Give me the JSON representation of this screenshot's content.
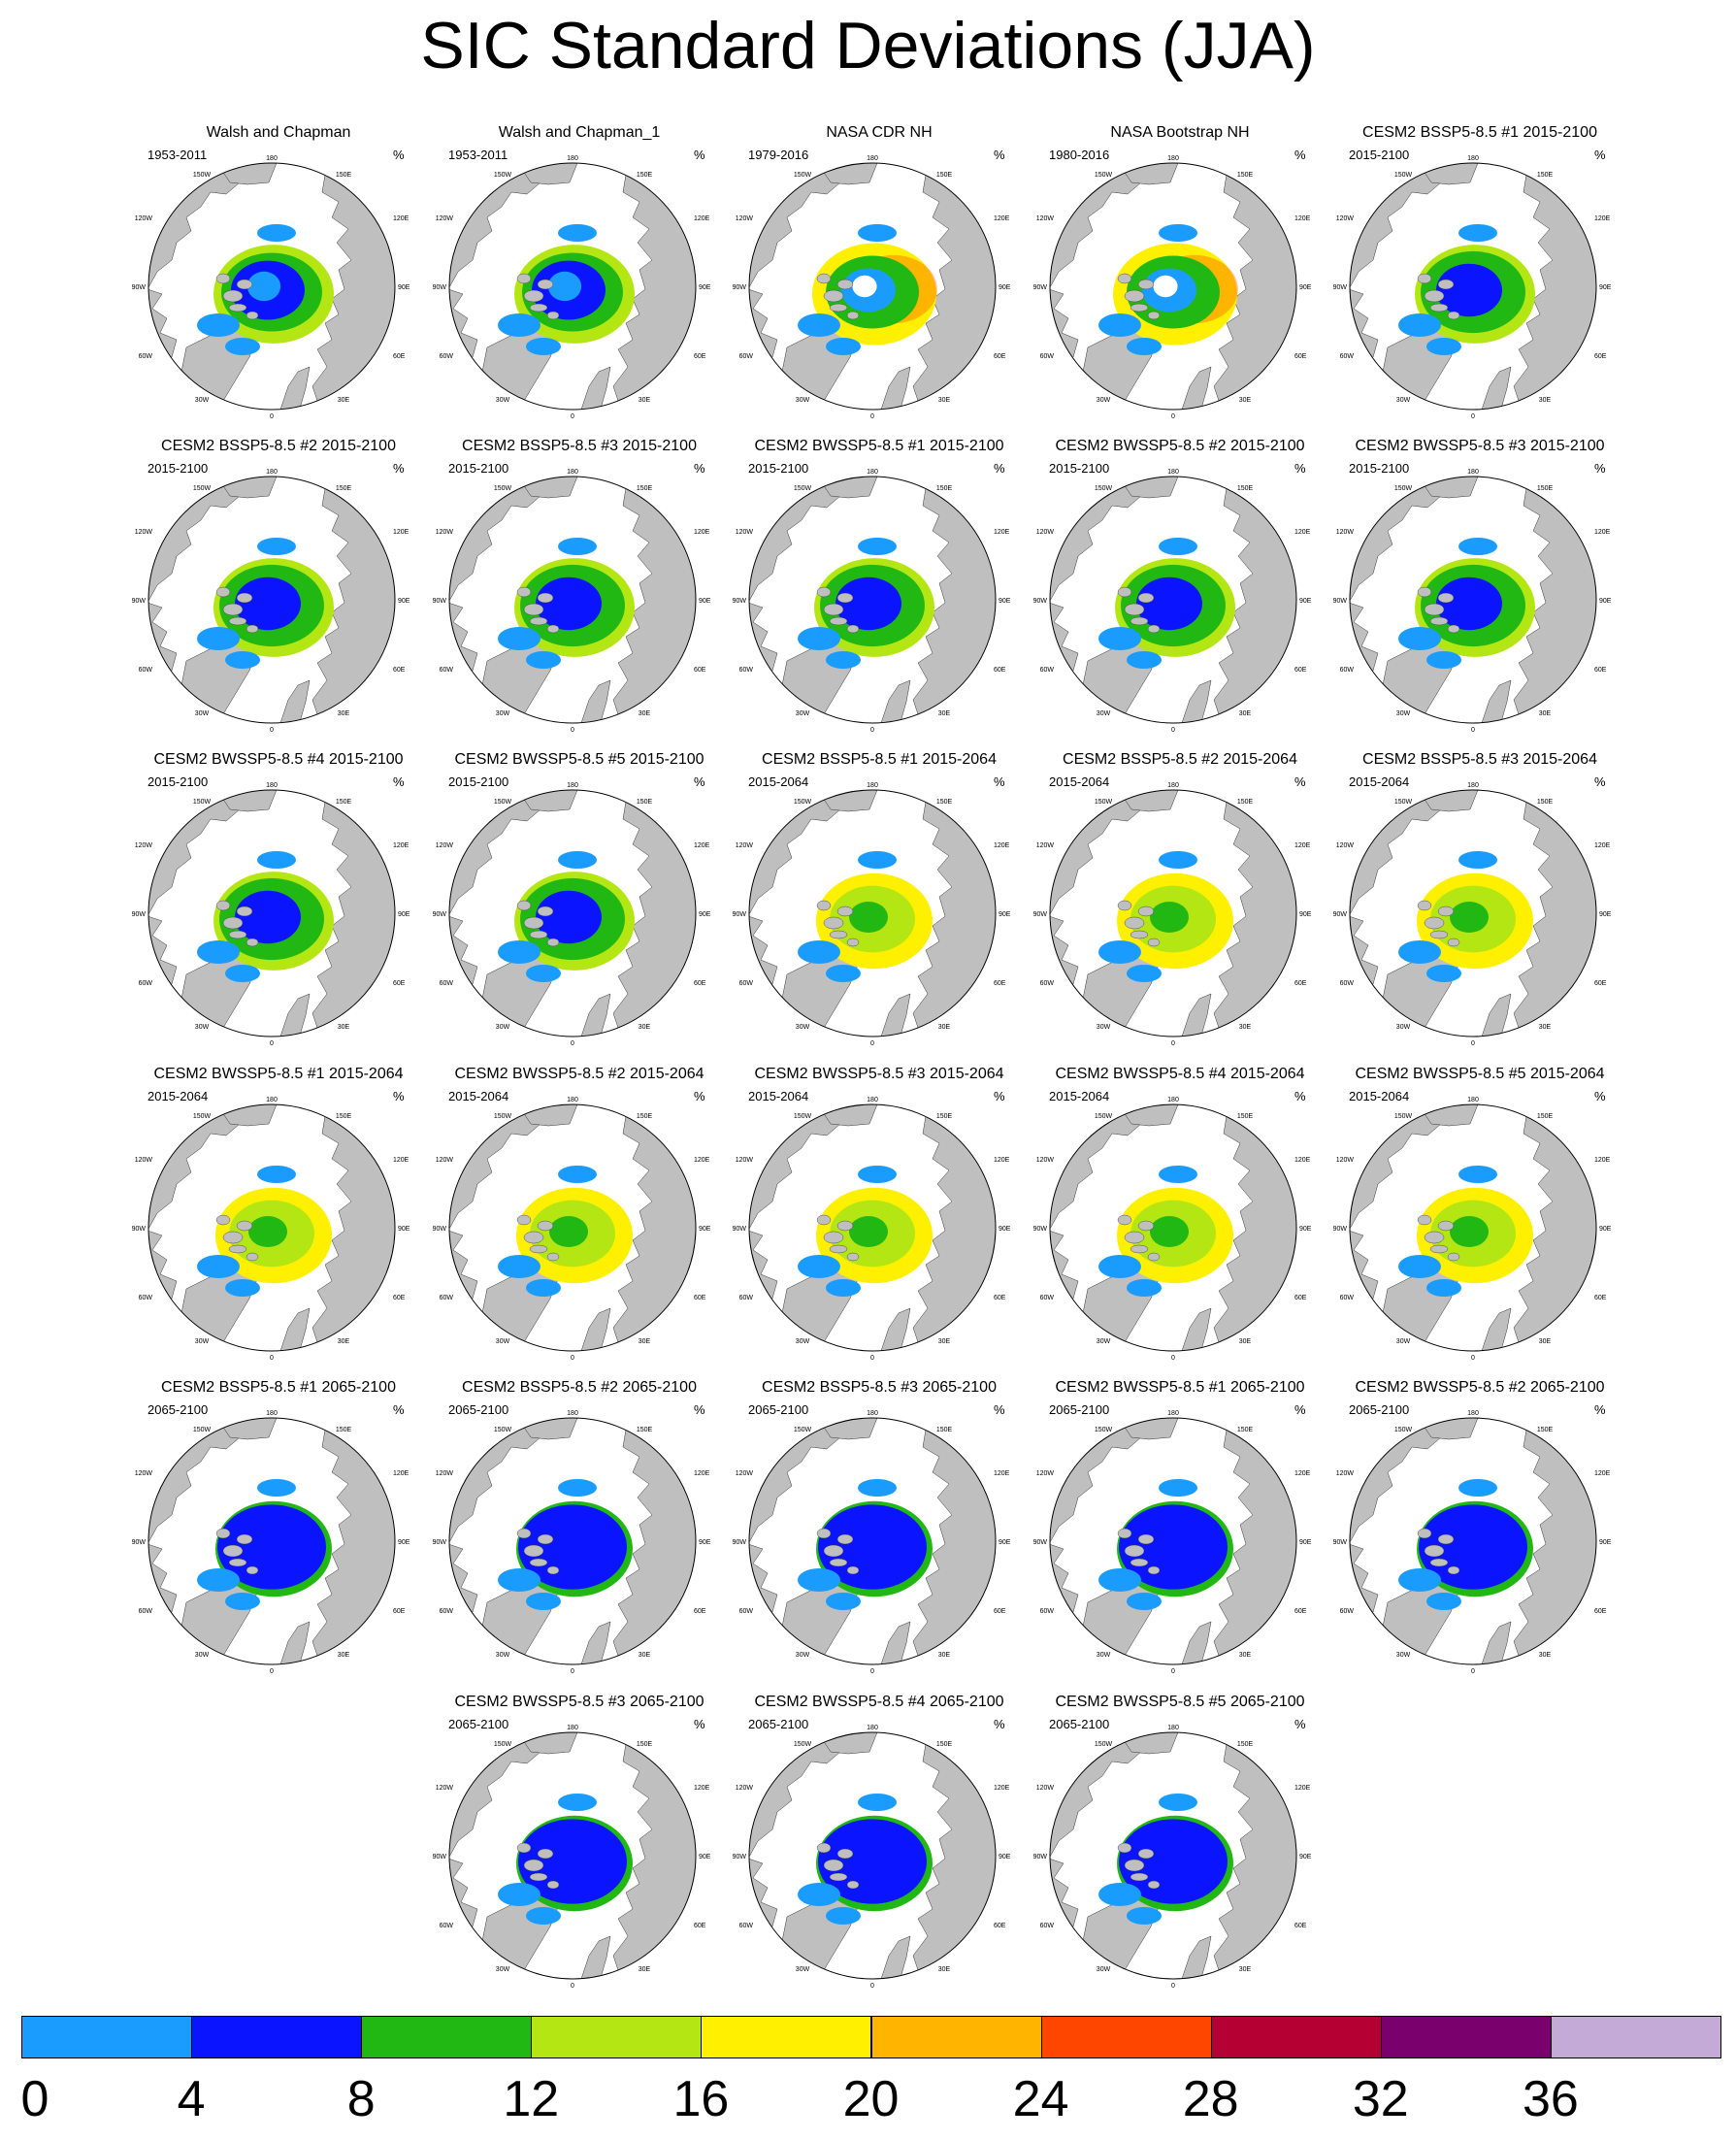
{
  "title": "SIC Standard Deviations (JJA)",
  "unit": "%",
  "map_labels": {
    "lat_top": "180",
    "lon_150w": "150W",
    "lon_150e": "150E",
    "lon_120w": "120W",
    "lon_120e": "120E",
    "lon_90w": "90W",
    "lon_90e": "90E",
    "lon_60w": "60W",
    "lon_60e": "60E",
    "lon_30w": "30W",
    "lon_30e": "30E",
    "lat_bottom": "0"
  },
  "panels": [
    {
      "title": "Walsh and Chapman",
      "period": "1953-2011",
      "style": "obs"
    },
    {
      "title": "Walsh and Chapman_1",
      "period": "1953-2011",
      "style": "obs"
    },
    {
      "title": "NASA CDR NH",
      "period": "1979-2016",
      "style": "obs2"
    },
    {
      "title": "NASA Bootstrap NH",
      "period": "1980-2016",
      "style": "obs2"
    },
    {
      "title": "CESM2 BSSP5-8.5 #1 2015-2100",
      "period": "2015-2100",
      "style": "full"
    },
    {
      "title": "CESM2 BSSP5-8.5 #2 2015-2100",
      "period": "2015-2100",
      "style": "full"
    },
    {
      "title": "CESM2 BSSP5-8.5 #3 2015-2100",
      "period": "2015-2100",
      "style": "full"
    },
    {
      "title": "CESM2 BWSSP5-8.5 #1 2015-2100",
      "period": "2015-2100",
      "style": "full"
    },
    {
      "title": "CESM2 BWSSP5-8.5 #2 2015-2100",
      "period": "2015-2100",
      "style": "full"
    },
    {
      "title": "CESM2 BWSSP5-8.5 #3 2015-2100",
      "period": "2015-2100",
      "style": "full"
    },
    {
      "title": "CESM2 BWSSP5-8.5 #4 2015-2100",
      "period": "2015-2100",
      "style": "full"
    },
    {
      "title": "CESM2 BWSSP5-8.5 #5 2015-2100",
      "period": "2015-2100",
      "style": "full"
    },
    {
      "title": "CESM2 BSSP5-8.5 #1 2015-2064",
      "period": "2015-2064",
      "style": "early"
    },
    {
      "title": "CESM2 BSSP5-8.5 #2 2015-2064",
      "period": "2015-2064",
      "style": "early"
    },
    {
      "title": "CESM2 BSSP5-8.5 #3 2015-2064",
      "period": "2015-2064",
      "style": "early"
    },
    {
      "title": "CESM2 BWSSP5-8.5 #1 2015-2064",
      "period": "2015-2064",
      "style": "early"
    },
    {
      "title": "CESM2 BWSSP5-8.5 #2 2015-2064",
      "period": "2015-2064",
      "style": "early"
    },
    {
      "title": "CESM2 BWSSP5-8.5 #3 2015-2064",
      "period": "2015-2064",
      "style": "early"
    },
    {
      "title": "CESM2 BWSSP5-8.5 #4 2015-2064",
      "period": "2015-2064",
      "style": "early"
    },
    {
      "title": "CESM2 BWSSP5-8.5 #5 2015-2064",
      "period": "2015-2064",
      "style": "early"
    },
    {
      "title": "CESM2 BSSP5-8.5 #1 2065-2100",
      "period": "2065-2100",
      "style": "late"
    },
    {
      "title": "CESM2 BSSP5-8.5 #2 2065-2100",
      "period": "2065-2100",
      "style": "late"
    },
    {
      "title": "CESM2 BSSP5-8.5 #3 2065-2100",
      "period": "2065-2100",
      "style": "late"
    },
    {
      "title": "CESM2 BWSSP5-8.5 #1 2065-2100",
      "period": "2065-2100",
      "style": "late"
    },
    {
      "title": "CESM2 BWSSP5-8.5 #2 2065-2100",
      "period": "2065-2100",
      "style": "late"
    },
    {
      "title": "CESM2 BWSSP5-8.5 #3 2065-2100",
      "period": "2065-2100",
      "style": "late"
    },
    {
      "title": "CESM2 BWSSP5-8.5 #4 2065-2100",
      "period": "2065-2100",
      "style": "late"
    },
    {
      "title": "CESM2 BWSSP5-8.5 #5 2065-2100",
      "period": "2065-2100",
      "style": "late"
    }
  ],
  "colorbar": {
    "colors": [
      "#1a9cff",
      "#0a14ff",
      "#22b814",
      "#b4e614",
      "#fff000",
      "#ffb400",
      "#ff4600",
      "#b40032",
      "#7a006e",
      "#c3aad7"
    ],
    "labels": [
      "0",
      "4",
      "8",
      "12",
      "16",
      "20",
      "24",
      "28",
      "32",
      "36"
    ]
  },
  "colors": {
    "land": "#bfbfbf",
    "ocean": "#ffffff",
    "outline": "#000000"
  }
}
